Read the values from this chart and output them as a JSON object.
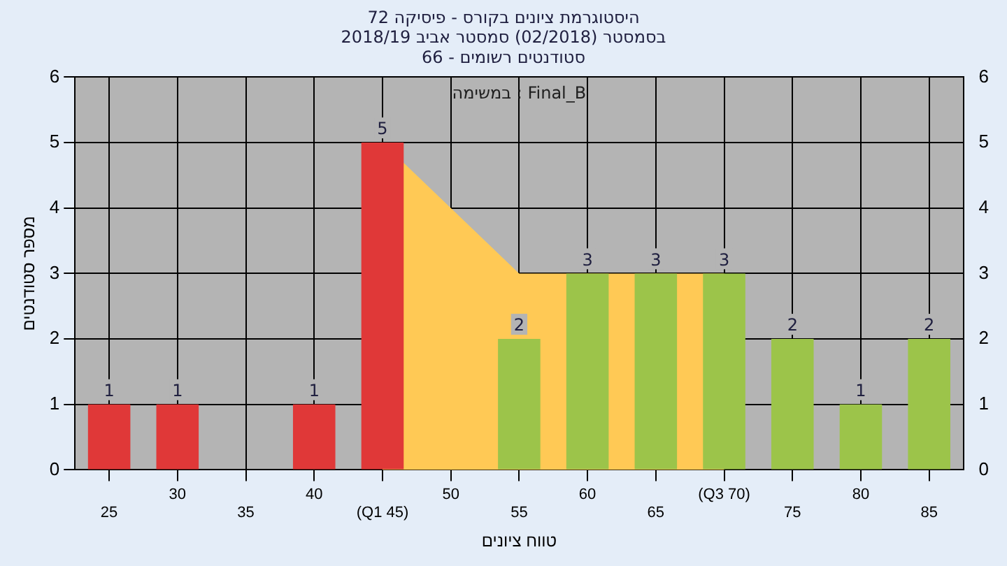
{
  "chart_data": {
    "type": "bar",
    "title": "היסטוגרמת ציונים בקורס - פיסיקה 72",
    "subtitle": "בסמסטר (02/2018) סמסטר אביב 2018/19\nסטודנטים רשומים - 66",
    "xlabel": "טווח ציונים",
    "ylabel": "מספר סטודנטים",
    "annotations": [
      "במשימה : Final_B"
    ],
    "categories": [
      "25",
      "30",
      "35",
      "40",
      "(Q1 45)",
      "50",
      "55",
      "60",
      "65",
      "(Q3 70)",
      "75",
      "80",
      "85"
    ],
    "series": [
      {
        "type": "area",
        "color": "#ffc955",
        "values": [
          null,
          null,
          null,
          null,
          5,
          4,
          3,
          3,
          3,
          3,
          null,
          null,
          null
        ]
      },
      {
        "colors": [
          "#e03838",
          "#e03838",
          "#e03838",
          "#e03838",
          "#e03838",
          "#e03838",
          "#9cc44a",
          "#9cc44a",
          "#9cc44a",
          "#9cc44a",
          "#9cc44a",
          "#9cc44a",
          "#9cc44a"
        ],
        "values": [
          1,
          1,
          0,
          1,
          5,
          0,
          2,
          3,
          3,
          3,
          2,
          1,
          2
        ],
        "value_labels": [
          "1",
          "1",
          null,
          "1",
          "5",
          null,
          "2",
          "3",
          "3",
          "3",
          "2",
          "1",
          "2"
        ]
      }
    ],
    "ylim": [
      0,
      6
    ],
    "yticks": [
      0,
      1,
      2,
      3,
      4,
      5,
      6
    ],
    "y2lim": [
      0,
      6
    ],
    "y2ticks": [
      0,
      1,
      2,
      3,
      4,
      5,
      6
    ],
    "grid": true,
    "legend": false
  }
}
